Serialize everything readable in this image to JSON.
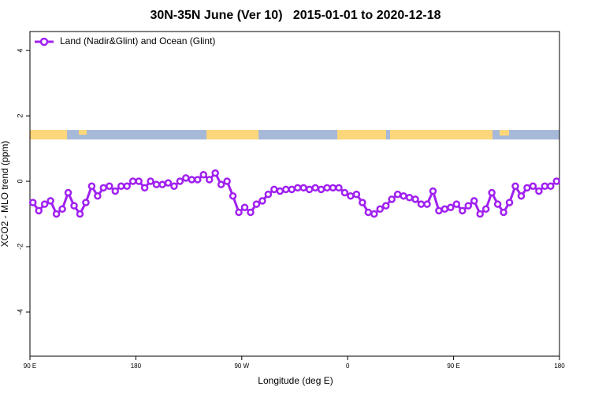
{
  "chart_data": {
    "type": "line",
    "title": "30N-35N June (Ver 10)   2015-01-01 to 2020-12-18",
    "x_label": "Longitude (deg E)",
    "y_label": "XCO2 - MLO trend (ppm)",
    "x": [
      92.5,
      97.5,
      102.5,
      107.5,
      112.5,
      117.5,
      122.5,
      127.5,
      132.5,
      137.5,
      142.5,
      147.5,
      152.5,
      157.5,
      162.5,
      167.5,
      172.5,
      177.5,
      182.5,
      187.5,
      192.5,
      197.5,
      202.5,
      207.5,
      212.5,
      217.5,
      222.5,
      227.5,
      232.5,
      237.5,
      242.5,
      247.5,
      252.5,
      257.5,
      262.5,
      267.5,
      272.5,
      277.5,
      282.5,
      287.5,
      292.5,
      297.5,
      302.5,
      307.5,
      312.5,
      317.5,
      322.5,
      327.5,
      332.5,
      337.5,
      342.5,
      347.5,
      352.5,
      357.5,
      362.5,
      367.5,
      372.5,
      377.5,
      382.5,
      387.5,
      392.5,
      397.5,
      402.5,
      407.5,
      412.5,
      417.5,
      422.5,
      427.5,
      432.5,
      437.5,
      442.5,
      447.5,
      452.5,
      457.5,
      462.5,
      467.5,
      472.5,
      477.5,
      482.5,
      487.5,
      492.5,
      497.5,
      502.5,
      507.5,
      512.5,
      517.5,
      522.5,
      527.5,
      532.5,
      537.5
    ],
    "series": [
      {
        "name": "Land (Nadir&Glint) and Ocean (Glint)",
        "color": "#a020f0",
        "values": [
          -0.65,
          -0.9,
          -0.7,
          -0.6,
          -1.0,
          -0.85,
          -0.35,
          -0.75,
          -1.0,
          -0.65,
          -0.15,
          -0.45,
          -0.2,
          -0.15,
          -0.3,
          -0.15,
          -0.15,
          0.0,
          0.0,
          -0.2,
          0.0,
          -0.1,
          -0.1,
          -0.05,
          -0.15,
          0.0,
          0.1,
          0.05,
          0.05,
          0.2,
          0.05,
          0.25,
          -0.1,
          0.0,
          -0.45,
          -0.95,
          -0.8,
          -0.95,
          -0.7,
          -0.6,
          -0.4,
          -0.25,
          -0.3,
          -0.25,
          -0.25,
          -0.2,
          -0.2,
          -0.25,
          -0.2,
          -0.25,
          -0.2,
          -0.2,
          -0.2,
          -0.35,
          -0.45,
          -0.4,
          -0.65,
          -0.95,
          -1.0,
          -0.85,
          -0.75,
          -0.55,
          -0.4,
          -0.45,
          -0.5,
          -0.55,
          -0.7,
          -0.7,
          -0.3,
          -0.9,
          -0.85,
          -0.8,
          -0.7,
          -0.9,
          -0.75,
          -0.6,
          -1.0,
          -0.85,
          -0.35,
          -0.7,
          -0.95,
          -0.65,
          -0.15,
          -0.45,
          -0.2,
          -0.15,
          -0.3,
          -0.15,
          -0.15,
          0.0
        ]
      }
    ],
    "xlim": [
      90,
      540
    ],
    "ylim": [
      -5.35,
      4.58
    ],
    "xticks": [
      {
        "value": 90,
        "label": "90 E"
      },
      180,
      {
        "value": 270,
        "label": "90 W"
      },
      {
        "value": 360,
        "label": "0"
      },
      {
        "value": 450,
        "label": "90 E"
      },
      {
        "value": 540,
        "label": "180"
      }
    ],
    "yticks": [
      -4,
      -2,
      0,
      2,
      4
    ],
    "legend": "top-left"
  }
}
